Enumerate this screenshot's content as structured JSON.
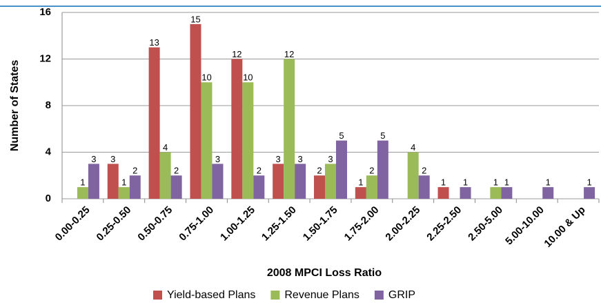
{
  "chart_data": {
    "type": "bar",
    "categories": [
      "0.00-0.25",
      "0.25-0.50",
      "0.50-0.75",
      "0.75-1.00",
      "1.00-1.25",
      "1.25-1.50",
      "1.50-1.75",
      "1.75-2.00",
      "2.00-2.25",
      "2.25-2.50",
      "2.50-5.00",
      "5.00-10.00",
      "10.00 & Up"
    ],
    "series": [
      {
        "name": "Yield-based Plans",
        "color": "#c0504d",
        "values": [
          0,
          3,
          13,
          15,
          12,
          3,
          2,
          1,
          0,
          1,
          0,
          0,
          0
        ]
      },
      {
        "name": "Revenue Plans",
        "color": "#9bbb59",
        "values": [
          1,
          1,
          4,
          10,
          10,
          12,
          3,
          2,
          4,
          0,
          1,
          0,
          0
        ]
      },
      {
        "name": "GRIP",
        "color": "#8064a2",
        "values": [
          3,
          2,
          2,
          3,
          2,
          3,
          5,
          5,
          2,
          1,
          1,
          1,
          1
        ]
      }
    ],
    "x_label": "2008 MPCI Loss Ratio",
    "y_label": "Number of States",
    "ylim": [
      0,
      16
    ],
    "yticks": [
      0,
      4,
      8,
      12,
      16
    ],
    "grid": true
  }
}
